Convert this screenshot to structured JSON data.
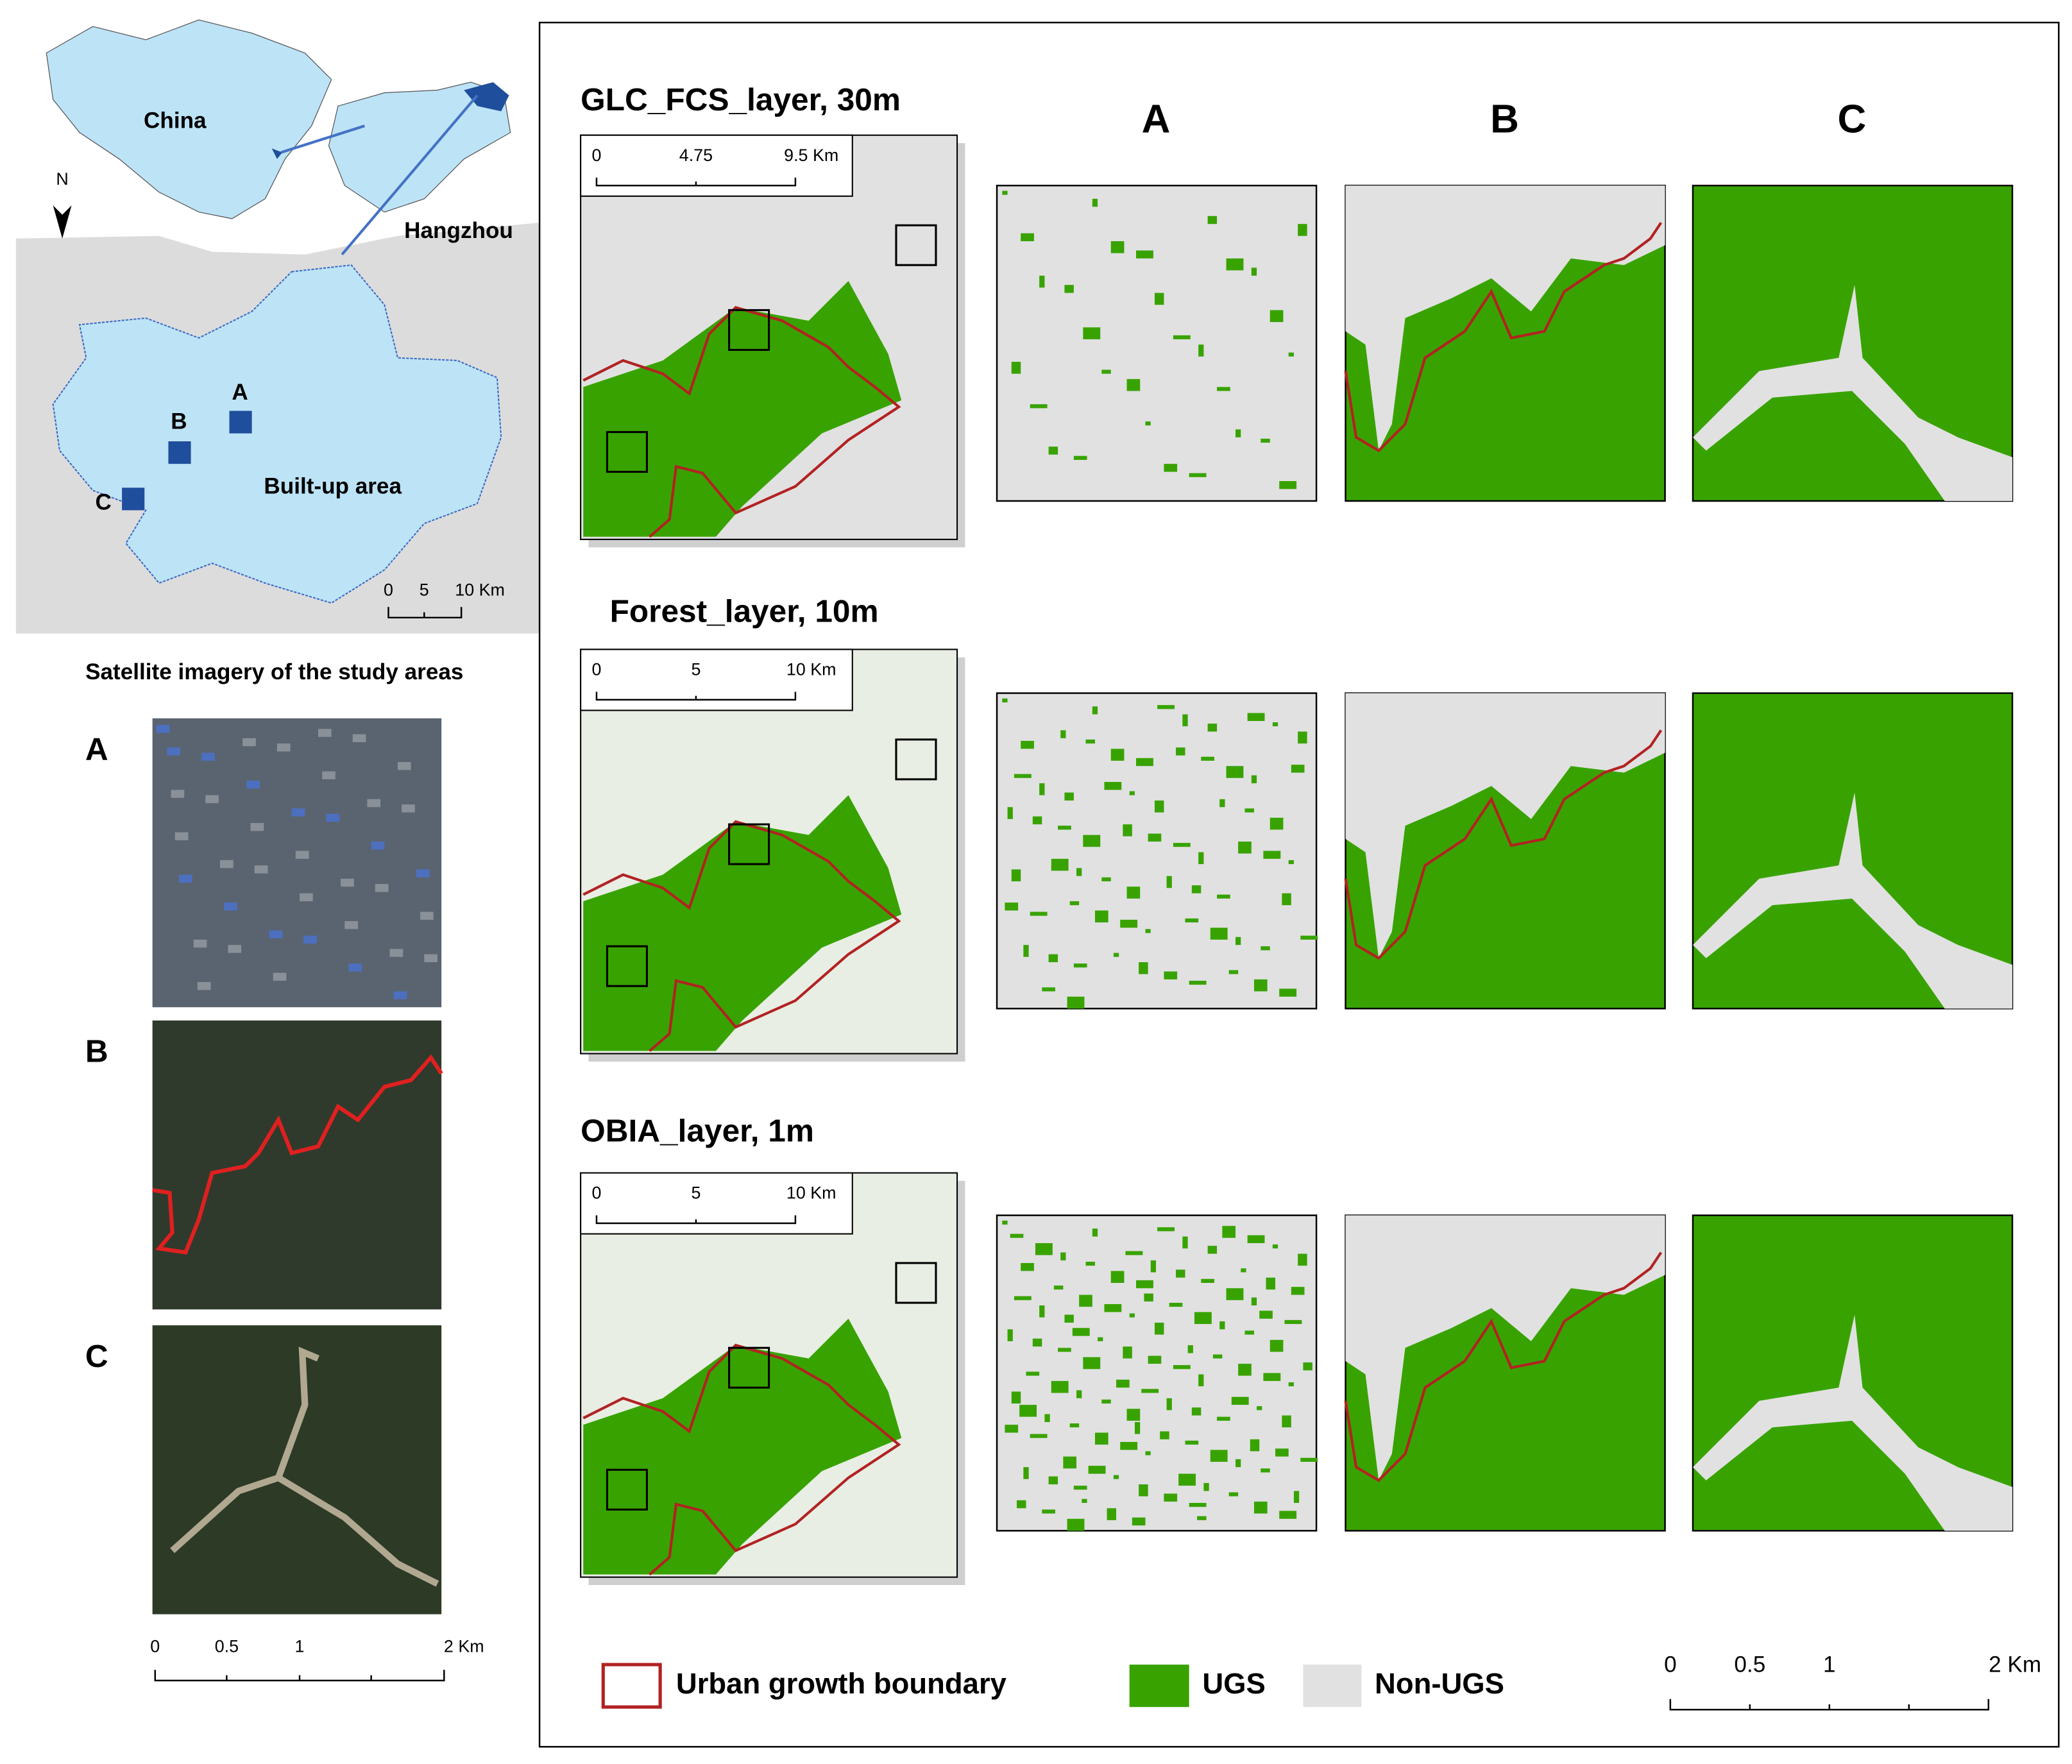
{
  "overview": {
    "china": "China",
    "hangzhou": "Hangzhou",
    "builtup": "Built-up area",
    "north": "N",
    "sites": [
      "A",
      "B",
      "C"
    ],
    "scalebar": [
      "0",
      "5",
      "10 Km"
    ]
  },
  "satellite": {
    "title": "Satellite imagery of the study areas",
    "panels": [
      "A",
      "B",
      "C"
    ],
    "scalebar": [
      "0",
      "0.5",
      "1",
      "2 Km"
    ]
  },
  "layers": [
    {
      "title": "GLC_FCS_layer, 30m",
      "scalebar": [
        "0",
        "4.75",
        "9.5 Km"
      ]
    },
    {
      "title": "Forest_layer, 10m",
      "scalebar": [
        "0",
        "5",
        "10 Km"
      ]
    },
    {
      "title": "OBIA_layer, 1m",
      "scalebar": [
        "0",
        "5",
        "10 Km"
      ]
    }
  ],
  "columns": [
    "A",
    "B",
    "C"
  ],
  "legend": [
    "Urban growth boundary",
    "UGS",
    "Non-UGS"
  ],
  "scalebar": [
    "0",
    "0.5",
    "1",
    "2 Km"
  ]
}
